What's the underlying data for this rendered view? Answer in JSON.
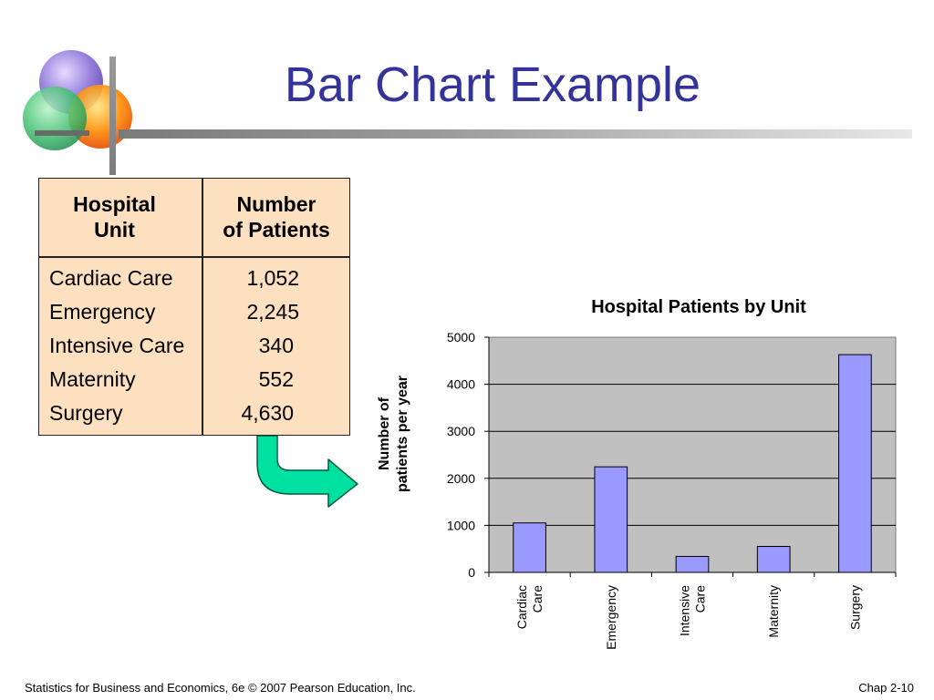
{
  "slide": {
    "title": "Bar Chart Example",
    "footer_left": "Statistics for Business and Economics, 6e © 2007 Pearson Education, Inc.",
    "footer_right": "Chap 2-10"
  },
  "table": {
    "headers": [
      "Hospital\nUnit",
      "Number\nof Patients"
    ],
    "rows": [
      {
        "unit": "Cardiac Care",
        "patients": "1,052"
      },
      {
        "unit": "Emergency",
        "patients": "2,245"
      },
      {
        "unit": "Intensive Care",
        "patients": "340"
      },
      {
        "unit": "Maternity",
        "patients": "552"
      },
      {
        "unit": "Surgery",
        "patients": "4,630"
      }
    ],
    "fill_color": "#fde0c0"
  },
  "colors": {
    "title": "#333399",
    "arrow": "#00e0a0",
    "bar": "#9999ff",
    "plot_bg": "#c0c0c0"
  },
  "chart_data": {
    "type": "bar",
    "title": "Hospital Patients by Unit",
    "xlabel": "",
    "ylabel": "Number of patients per year",
    "categories": [
      "Cardiac Care",
      "Emergency",
      "Intensive Care",
      "Maternity",
      "Surgery"
    ],
    "values": [
      1052,
      2245,
      340,
      552,
      4630
    ],
    "ylim": [
      0,
      5000
    ],
    "yticks": [
      0,
      1000,
      2000,
      3000,
      4000,
      5000
    ],
    "grid": true,
    "legend": "none"
  }
}
